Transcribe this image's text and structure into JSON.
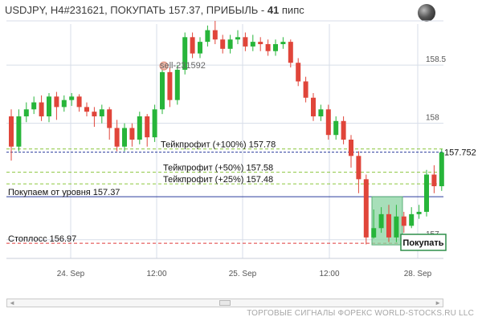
{
  "header": {
    "title_prefix": "USDJPY, H4#231621, ПОКУПАТЬ 157.37, ПРИБЫЛЬ - ",
    "profit_value": "41",
    "profit_unit": " пипс"
  },
  "icons": {
    "globe": "globe-icon"
  },
  "colors": {
    "bull": "#27b53a",
    "bear": "#e0453a",
    "grid": "#d7dde8",
    "entry_line": "#2b3c9e",
    "tp_line": "#8cc63f",
    "sl_line": "#e03b3b",
    "current_line": "#2b3c9e",
    "buy_zone": "#8ad4a2"
  },
  "chart_data": {
    "type": "candlestick",
    "symbol": "USDJPY",
    "timeframe": "H4",
    "ylim": [
      156.84,
      158.88
    ],
    "y_ticks": [
      "158.5",
      "158",
      "157"
    ],
    "x_ticks": [
      "24. Sep",
      "12:00",
      "25. Sep",
      "12:00",
      "28. Sep"
    ],
    "current_price": "157.752",
    "levels": [
      {
        "label": "Тейкпрофит (+100%) 157.78",
        "price": 157.78,
        "kind": "tp"
      },
      {
        "label": "Тейкпрофит (+50%) 157.58",
        "price": 157.58,
        "kind": "tp"
      },
      {
        "label": "Тейкпрофит (+25%) 157.48",
        "price": 157.48,
        "kind": "tp"
      },
      {
        "label": "Покупаем от уровня 157.37",
        "price": 157.37,
        "kind": "entry"
      },
      {
        "label": "Стоплосс 156.97",
        "price": 156.97,
        "kind": "sl"
      }
    ],
    "annotations": {
      "sell_label": "sell-231592",
      "sell_price": 158.5,
      "buy_badge": "Покупать"
    },
    "candles": [
      [
        158.06,
        157.8,
        157.68,
        158.12
      ],
      [
        157.8,
        158.06,
        157.76,
        158.12
      ],
      [
        158.06,
        158.12,
        158.01,
        158.18
      ],
      [
        158.12,
        158.18,
        158.08,
        158.23
      ],
      [
        158.18,
        158.06,
        158.02,
        158.24
      ],
      [
        158.06,
        158.23,
        158.01,
        158.26
      ],
      [
        158.23,
        158.14,
        158.03,
        158.27
      ],
      [
        158.14,
        158.2,
        158.1,
        158.24
      ],
      [
        158.2,
        158.23,
        158.15,
        158.26
      ],
      [
        158.23,
        158.14,
        158.1,
        158.25
      ],
      [
        158.14,
        158.1,
        158.06,
        158.18
      ],
      [
        158.1,
        158.06,
        157.97,
        158.14
      ],
      [
        158.06,
        158.12,
        158,
        158.16
      ],
      [
        158.12,
        157.96,
        157.86,
        158.14
      ],
      [
        157.96,
        157.8,
        157.76,
        158.03
      ],
      [
        157.8,
        157.96,
        157.76,
        158
      ],
      [
        157.96,
        157.86,
        157.8,
        158
      ],
      [
        157.86,
        158.06,
        157.82,
        158.1
      ],
      [
        158.06,
        157.88,
        157.8,
        158.08
      ],
      [
        157.88,
        158.12,
        157.84,
        158.16
      ],
      [
        158.12,
        158.44,
        158.08,
        158.48
      ],
      [
        158.44,
        158.2,
        158.14,
        158.48
      ],
      [
        158.2,
        158.46,
        158.16,
        158.5
      ],
      [
        158.46,
        158.74,
        158.42,
        158.78
      ],
      [
        158.74,
        158.6,
        158.56,
        158.78
      ],
      [
        158.6,
        158.7,
        158.56,
        158.74
      ],
      [
        158.7,
        158.8,
        158.66,
        158.84
      ],
      [
        158.8,
        158.72,
        158.68,
        158.88
      ],
      [
        158.72,
        158.64,
        158.6,
        158.76
      ],
      [
        158.64,
        158.72,
        158.6,
        158.76
      ],
      [
        158.72,
        158.74,
        158.68,
        158.8
      ],
      [
        158.74,
        158.66,
        158.62,
        158.78
      ],
      [
        158.66,
        158.7,
        158.62,
        158.76
      ],
      [
        158.7,
        158.68,
        158.62,
        158.74
      ],
      [
        158.68,
        158.62,
        158.58,
        158.72
      ],
      [
        158.62,
        158.68,
        158.58,
        158.72
      ],
      [
        158.68,
        158.7,
        158.64,
        158.74
      ],
      [
        158.7,
        158.52,
        158.48,
        158.72
      ],
      [
        158.52,
        158.36,
        158.32,
        158.56
      ],
      [
        158.36,
        158.22,
        158.18,
        158.4
      ],
      [
        158.22,
        158.06,
        158.02,
        158.26
      ],
      [
        158.06,
        158.12,
        158.02,
        158.16
      ],
      [
        158.12,
        157.9,
        157.86,
        158.16
      ],
      [
        157.9,
        158.02,
        157.86,
        158.06
      ],
      [
        158.02,
        157.86,
        157.82,
        158.06
      ],
      [
        157.86,
        157.72,
        157.62,
        157.9
      ],
      [
        157.72,
        157.52,
        157.4,
        157.76
      ],
      [
        157.52,
        157.02,
        156.96,
        157.56
      ],
      [
        157.02,
        157.1,
        157.01,
        157.26
      ],
      [
        157.1,
        157.22,
        157.06,
        157.28
      ],
      [
        157.22,
        157.02,
        156.98,
        157.3
      ],
      [
        157.02,
        157.2,
        156.98,
        157.3
      ],
      [
        157.2,
        157.12,
        157.06,
        157.24
      ],
      [
        157.12,
        157.22,
        157.1,
        157.28
      ],
      [
        157.22,
        157.24,
        157.18,
        157.3
      ],
      [
        157.24,
        157.56,
        157.2,
        157.6
      ],
      [
        157.56,
        157.46,
        157.4,
        157.64
      ],
      [
        157.46,
        157.75,
        157.42,
        157.78
      ]
    ]
  },
  "scrollbar": {
    "left_arrow": "◄",
    "right_arrow": "►",
    "thumb_label": "|||"
  },
  "footer": {
    "text": "ТОРГОВЫЕ СИГНАЛЫ ФОРЕКС WORLD-STOCKS.RU LLC"
  }
}
